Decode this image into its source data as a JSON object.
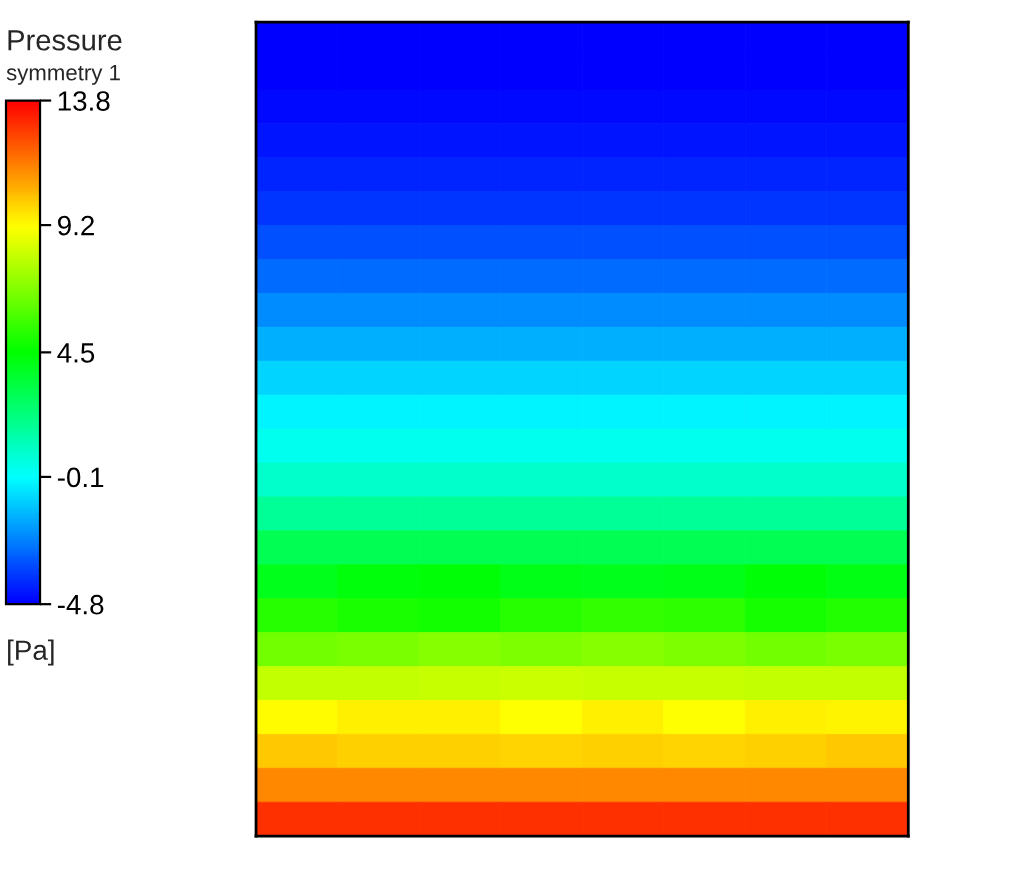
{
  "chart_data": {
    "type": "heatmap",
    "title": "Pressure",
    "subtitle": "symmetry 1",
    "clabel": "[Pa]",
    "categories": [
      null,
      null,
      null,
      null,
      null,
      null,
      null,
      null
    ],
    "y_categories": [
      null,
      null,
      null,
      null,
      null,
      null,
      null,
      null,
      null,
      null,
      null,
      null,
      null,
      null,
      null,
      null,
      null,
      null,
      null,
      null,
      null,
      null,
      null,
      null
    ],
    "cells": [
      [
        -4.8,
        -4.8,
        -4.8,
        -4.8,
        -4.8,
        -4.8,
        -4.8,
        -4.8
      ],
      [
        -4.8,
        -4.8,
        -4.8,
        -4.8,
        -4.8,
        -4.8,
        -4.8,
        -4.8
      ],
      [
        -4.6,
        -4.6,
        -4.6,
        -4.6,
        -4.6,
        -4.6,
        -4.6,
        -4.6
      ],
      [
        -4.4,
        -4.4,
        -4.4,
        -4.4,
        -4.4,
        -4.4,
        -4.4,
        -4.4
      ],
      [
        -4.1,
        -4.1,
        -4.1,
        -4.1,
        -4.1,
        -4.1,
        -4.1,
        -4.1
      ],
      [
        -3.8,
        -3.8,
        -3.8,
        -3.8,
        -3.8,
        -3.8,
        -3.8,
        -3.8
      ],
      [
        -3.3,
        -3.3,
        -3.3,
        -3.3,
        -3.3,
        -3.3,
        -3.3,
        -3.3
      ],
      [
        -2.8,
        -2.8,
        -2.8,
        -2.8,
        -2.8,
        -2.8,
        -2.8,
        -2.8
      ],
      [
        -2.2,
        -2.2,
        -2.2,
        -2.2,
        -2.2,
        -2.2,
        -2.2,
        -2.2
      ],
      [
        -1.6,
        -1.6,
        -1.6,
        -1.6,
        -1.6,
        -1.6,
        -1.6,
        -1.6
      ],
      [
        -0.9,
        -0.9,
        -0.9,
        -0.9,
        -0.9,
        -0.9,
        -0.9,
        -0.9
      ],
      [
        -0.3,
        -0.3,
        -0.3,
        -0.3,
        -0.3,
        -0.3,
        -0.3,
        -0.3
      ],
      [
        0.2,
        0.2,
        0.2,
        0.2,
        0.2,
        0.2,
        0.2,
        0.2
      ],
      [
        0.8,
        0.8,
        0.8,
        0.8,
        0.8,
        0.8,
        0.8,
        0.8
      ],
      [
        1.8,
        1.8,
        1.8,
        1.8,
        1.8,
        1.8,
        1.8,
        1.8
      ],
      [
        3.0,
        3.0,
        3.0,
        3.0,
        3.0,
        3.0,
        3.0,
        3.0
      ],
      [
        4.0,
        4.3,
        4.4,
        4.1,
        4.0,
        4.1,
        4.4,
        4.2
      ],
      [
        5.2,
        5.0,
        4.8,
        5.2,
        5.4,
        5.3,
        4.9,
        5.1
      ],
      [
        6.6,
        6.7,
        6.9,
        6.8,
        6.9,
        6.8,
        6.6,
        6.7
      ],
      [
        8.0,
        8.0,
        8.1,
        8.2,
        8.1,
        8.1,
        8.0,
        8.0
      ],
      [
        9.2,
        9.4,
        9.4,
        9.1,
        9.4,
        9.1,
        9.4,
        9.3
      ],
      [
        10.1,
        10.0,
        10.0,
        9.9,
        10.0,
        9.9,
        10.0,
        10.1
      ],
      [
        11.3,
        11.3,
        11.3,
        11.3,
        11.3,
        11.3,
        11.3,
        11.3
      ],
      [
        12.9,
        12.9,
        12.9,
        12.9,
        12.9,
        12.9,
        12.9,
        12.9
      ]
    ],
    "clim": [
      -4.8,
      13.8
    ],
    "cticks": [
      -4.8,
      -0.1,
      4.5,
      9.2,
      13.8
    ]
  }
}
